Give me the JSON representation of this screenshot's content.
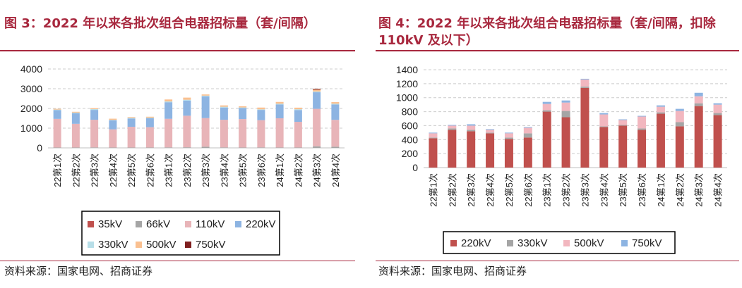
{
  "chart_data": [
    {
      "type": "bar",
      "stacked": true,
      "title": "图 3：2022 年以来各批次组合电器招标量（套/间隔）",
      "source": "资料来源：国家电网、招商证券",
      "categories": [
        "22第1次",
        "22第2次",
        "22第3次",
        "22第4次",
        "22第5次",
        "22第6次",
        "23第1次",
        "23第2次",
        "23第3次",
        "23第4次",
        "23第5次",
        "23第6次",
        "24第1次",
        "24第2次",
        "24第3次",
        "24第4次"
      ],
      "ylim": [
        0,
        4000
      ],
      "yticks": [
        "4000",
        "3000",
        "2000",
        "1000",
        "0"
      ],
      "series": [
        {
          "name": "35kV",
          "color": "#c0504d",
          "values": [
            0,
            0,
            0,
            0,
            0,
            0,
            0,
            0,
            0,
            0,
            0,
            0,
            0,
            0,
            0,
            0
          ]
        },
        {
          "name": "66kV",
          "color": "#a5a5a5",
          "values": [
            20,
            20,
            25,
            20,
            20,
            20,
            25,
            30,
            60,
            25,
            20,
            25,
            20,
            20,
            80,
            60
          ]
        },
        {
          "name": "110kV",
          "color": "#e8b4b8",
          "values": [
            1450,
            1200,
            1400,
            920,
            1050,
            1030,
            1450,
            1600,
            1450,
            1400,
            1440,
            1380,
            1480,
            1300,
            1900,
            1360
          ]
        },
        {
          "name": "220kV",
          "color": "#8db4e2",
          "values": [
            440,
            530,
            500,
            460,
            420,
            450,
            840,
            770,
            1100,
            620,
            560,
            520,
            700,
            600,
            840,
            780
          ]
        },
        {
          "name": "330kV",
          "color": "#b7dee8",
          "values": [
            30,
            40,
            40,
            20,
            30,
            30,
            40,
            40,
            40,
            40,
            30,
            30,
            40,
            40,
            40,
            40
          ]
        },
        {
          "name": "500kV",
          "color": "#fac090",
          "values": [
            40,
            40,
            50,
            60,
            40,
            50,
            100,
            110,
            60,
            70,
            60,
            90,
            90,
            80,
            100,
            80
          ]
        },
        {
          "name": "750kV",
          "color": "#7f1f1f",
          "values": [
            0,
            0,
            0,
            0,
            0,
            0,
            0,
            0,
            0,
            0,
            0,
            0,
            0,
            0,
            40,
            0
          ]
        }
      ]
    },
    {
      "type": "bar",
      "stacked": true,
      "title": "图 4：2022 年以来各批次组合电器招标量（套/间隔，扣除 110kV 及以下）",
      "source": "资料来源：国家电网、招商证券",
      "categories": [
        "22第1次",
        "22第2次",
        "22第3次",
        "22第4次",
        "22第5次",
        "22第6次",
        "23第1次",
        "23第2次",
        "23第3次",
        "23第4次",
        "23第5次",
        "23第6次",
        "24第1次",
        "24第2次",
        "24第3次",
        "24第4次"
      ],
      "ylim": [
        0,
        1400
      ],
      "yticks": [
        "1400",
        "1200",
        "1000",
        "800",
        "600",
        "400",
        "200",
        "0"
      ],
      "series": [
        {
          "name": "220kV",
          "color": "#c0504d",
          "values": [
            420,
            540,
            520,
            490,
            410,
            430,
            800,
            720,
            1140,
            580,
            600,
            540,
            770,
            590,
            880,
            750
          ]
        },
        {
          "name": "330kV",
          "color": "#a5a5a5",
          "values": [
            10,
            20,
            20,
            10,
            20,
            60,
            20,
            90,
            20,
            10,
            10,
            20,
            20,
            60,
            40,
            30
          ]
        },
        {
          "name": "500kV",
          "color": "#f2b7bf",
          "values": [
            60,
            40,
            60,
            40,
            60,
            80,
            90,
            120,
            100,
            170,
            70,
            170,
            80,
            160,
            100,
            120
          ]
        },
        {
          "name": "750kV",
          "color": "#8db4e2",
          "values": [
            10,
            10,
            20,
            10,
            10,
            10,
            30,
            30,
            10,
            20,
            10,
            10,
            20,
            30,
            50,
            20
          ]
        }
      ]
    }
  ]
}
